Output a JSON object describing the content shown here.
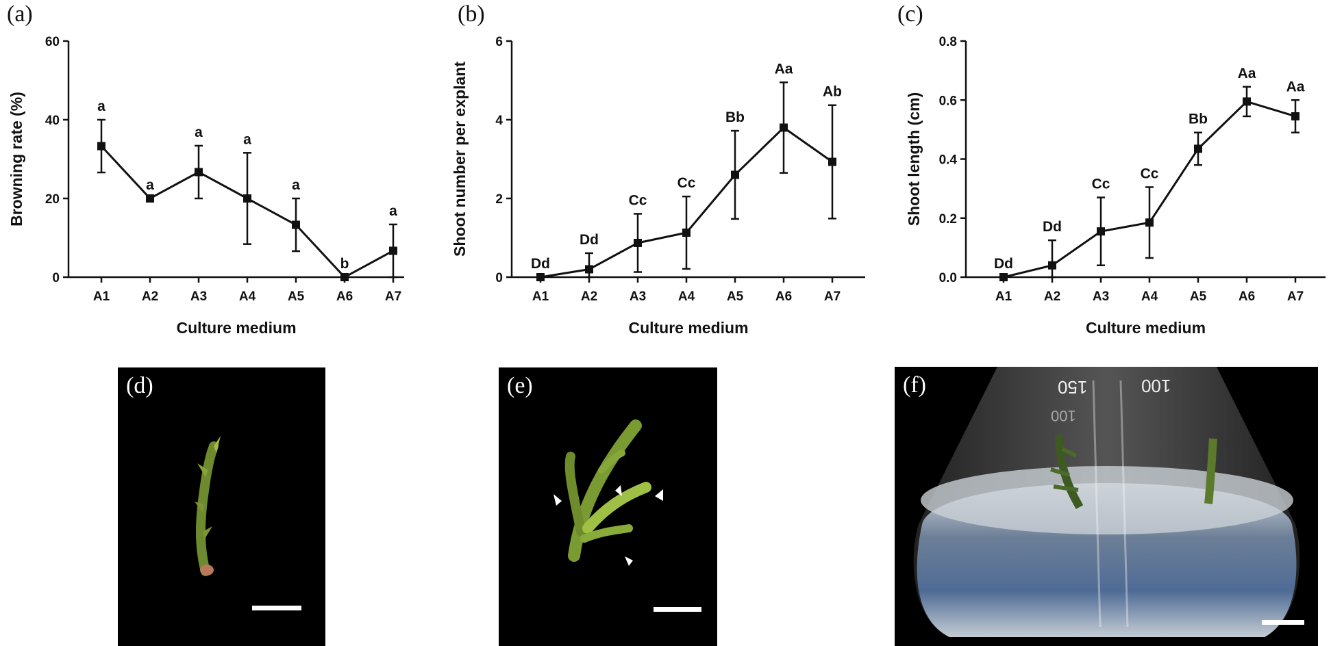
{
  "chart_data": [
    {
      "type": "line",
      "panel": "(a)",
      "xlabel": "Culture medium",
      "ylabel": "Browning rate (%)",
      "categories": [
        "A1",
        "A2",
        "A3",
        "A4",
        "A5",
        "A6",
        "A7"
      ],
      "values": [
        33.3,
        20.0,
        26.7,
        20.0,
        13.3,
        0.0,
        6.7
      ],
      "errors": [
        6.7,
        0.0,
        6.7,
        11.6,
        6.7,
        0.0,
        6.7
      ],
      "significance": [
        "a",
        "a",
        "a",
        "a",
        "a",
        "b",
        "a"
      ],
      "ylim": [
        0,
        60
      ],
      "yticks": [
        "0",
        "20",
        "40",
        "60"
      ],
      "tick_values": [
        0,
        20,
        40,
        60
      ]
    },
    {
      "type": "line",
      "panel": "(b)",
      "xlabel": "Culture medium",
      "ylabel": "Shoot number per explant",
      "categories": [
        "A1",
        "A2",
        "A3",
        "A4",
        "A5",
        "A6",
        "A7"
      ],
      "values": [
        0.0,
        0.2,
        0.87,
        1.13,
        2.6,
        3.8,
        2.93
      ],
      "errors": [
        0.0,
        0.41,
        0.74,
        0.92,
        1.12,
        1.15,
        1.44
      ],
      "significance": [
        "Dd",
        "Dd",
        "Cc",
        "Cc",
        "Bb",
        "Aa",
        "Ab"
      ],
      "ylim": [
        0,
        6
      ],
      "yticks": [
        "0",
        "2",
        "4",
        "6"
      ],
      "tick_values": [
        0,
        2,
        4,
        6
      ]
    },
    {
      "type": "line",
      "panel": "(c)",
      "xlabel": "Culture medium",
      "ylabel": "Shoot length (cm)",
      "categories": [
        "A1",
        "A2",
        "A3",
        "A4",
        "A5",
        "A6",
        "A7"
      ],
      "values": [
        0.0,
        0.04,
        0.155,
        0.185,
        0.435,
        0.595,
        0.545
      ],
      "errors": [
        0.0,
        0.085,
        0.115,
        0.12,
        0.055,
        0.05,
        0.055
      ],
      "significance": [
        "Dd",
        "Dd",
        "Cc",
        "Cc",
        "Bb",
        "Aa",
        "Aa"
      ],
      "ylim": [
        0,
        0.8
      ],
      "yticks": [
        "0.0",
        "0.2",
        "0.4",
        "0.6",
        "0.8"
      ],
      "tick_values": [
        0,
        0.2,
        0.4,
        0.6,
        0.8
      ]
    }
  ],
  "photos": {
    "d": {
      "label": "(d)"
    },
    "e": {
      "label": "(e)"
    },
    "f": {
      "label": "(f)",
      "flask_markings": [
        "150",
        "100",
        "100"
      ]
    }
  },
  "colors": {
    "line": "#111111",
    "background": "#ffffff",
    "photo_bg": "#000000"
  }
}
